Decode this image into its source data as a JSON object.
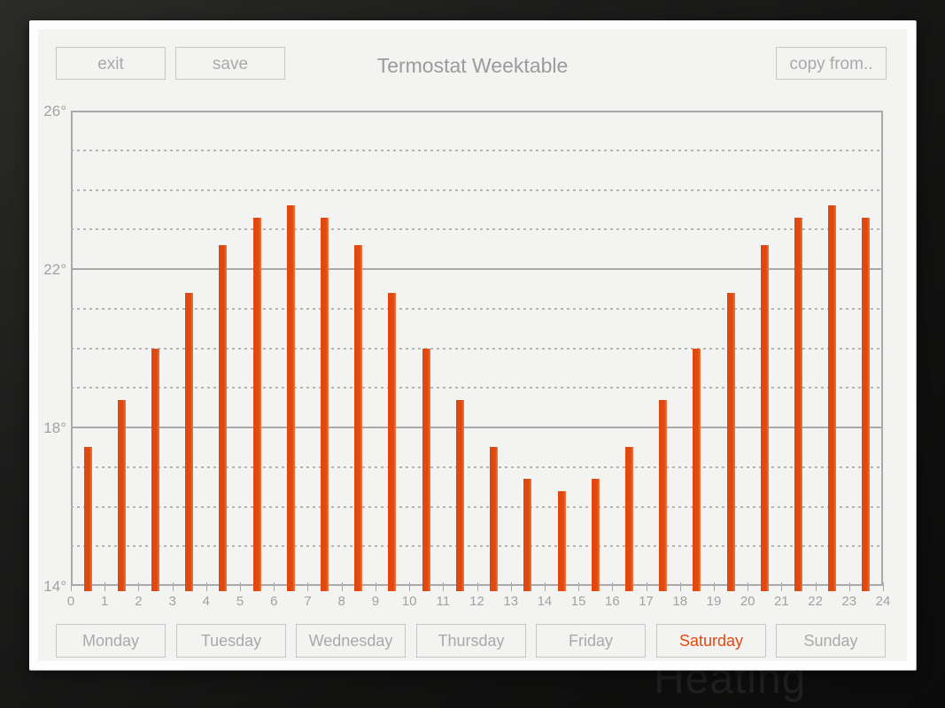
{
  "background": {
    "faint_text": "Heating"
  },
  "window": {
    "title": "Termostat Weektable",
    "buttons": {
      "exit": "exit",
      "save": "save",
      "copy_from": "copy from.."
    }
  },
  "tabs": {
    "days": [
      "Monday",
      "Tuesday",
      "Wednesday",
      "Thursday",
      "Friday",
      "Saturday",
      "Sunday"
    ],
    "selected": "Saturday"
  },
  "colors": {
    "bar": "#e2490f",
    "bar_edge_highlight": "#ea7b45",
    "selected_day_text": "#e8470e",
    "panel_background": "#f3f3f1",
    "window_background": "#fdfdfd",
    "button_border": "#c6c6c6",
    "muted_text": "#a9a9a9",
    "axis_line": "#a9a9a9"
  },
  "chart_data": {
    "type": "bar",
    "title": "Termostat Weektable",
    "x": [
      0,
      1,
      2,
      3,
      4,
      5,
      6,
      7,
      8,
      9,
      10,
      11,
      12,
      13,
      14,
      15,
      16,
      17,
      18,
      19,
      20,
      21,
      22,
      23
    ],
    "values": [
      17.5,
      18.7,
      20.0,
      21.4,
      22.6,
      23.3,
      23.6,
      23.3,
      22.6,
      21.4,
      20.0,
      18.7,
      17.5,
      16.7,
      16.4,
      16.7,
      17.5,
      18.7,
      20.0,
      21.4,
      22.6,
      23.3,
      23.6,
      23.3
    ],
    "xlabel": "",
    "ylabel": "",
    "xlim": [
      0,
      24
    ],
    "ylim": [
      14,
      26
    ],
    "x_tick_labels": [
      "0",
      "1",
      "2",
      "3",
      "4",
      "5",
      "6",
      "7",
      "8",
      "9",
      "10",
      "11",
      "12",
      "13",
      "14",
      "15",
      "16",
      "17",
      "18",
      "19",
      "20",
      "21",
      "22",
      "23",
      "24"
    ],
    "y_tick_labels": [
      "26°",
      "22°",
      "18°",
      "14°"
    ],
    "y_tick_values": [
      26,
      22,
      18,
      14
    ],
    "grid": {
      "solid_lines_at": [
        14,
        18,
        22,
        26
      ],
      "dashed_lines_every": 1
    },
    "legend": false
  }
}
